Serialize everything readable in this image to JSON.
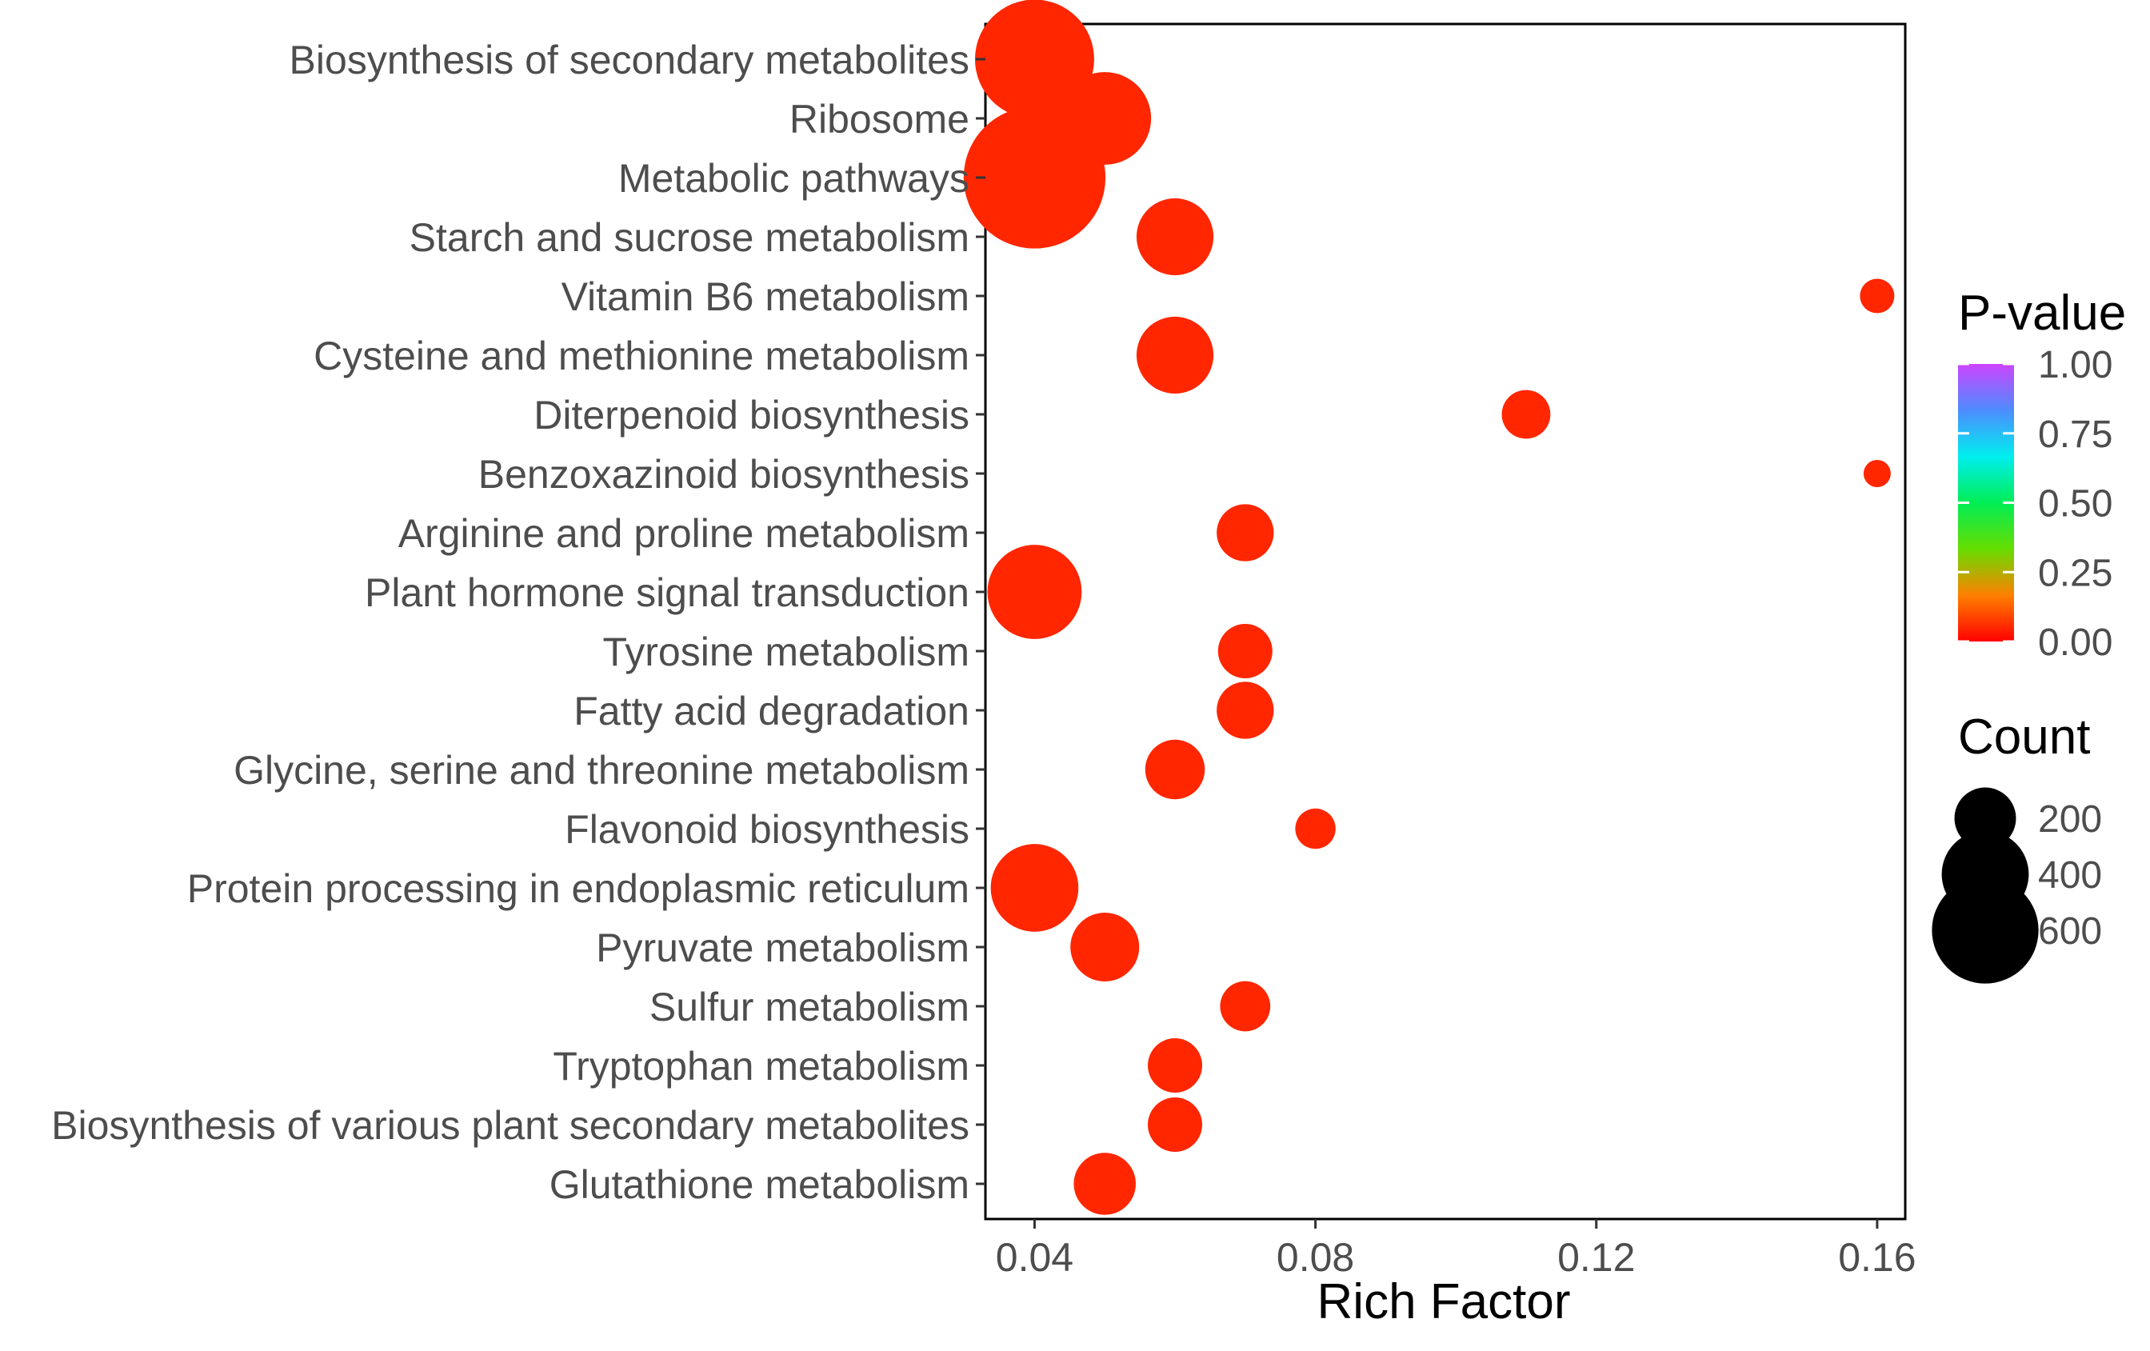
{
  "chart_data": {
    "type": "scatter",
    "subtype": "bubble",
    "xlabel": "Rich Factor",
    "ylabel": "",
    "xlim": [
      0.033,
      0.164
    ],
    "x_ticks": [
      0.04,
      0.08,
      0.12,
      0.16
    ],
    "x_tick_labels": [
      "0.04",
      "0.08",
      "0.12",
      "0.16"
    ],
    "grid": false,
    "categories": [
      "Biosynthesis of secondary metabolites",
      "Ribosome",
      "Metabolic pathways",
      "Starch and sucrose metabolism",
      "Vitamin B6 metabolism",
      "Cysteine and methionine metabolism",
      "Diterpenoid biosynthesis",
      "Benzoxazinoid biosynthesis",
      "Arginine and proline metabolism",
      "Plant hormone signal transduction",
      "Tyrosine metabolism",
      "Fatty acid degradation",
      "Glycine, serine and threonine metabolism",
      "Flavonoid biosynthesis",
      "Protein processing in endoplasmic reticulum",
      "Pyruvate metabolism",
      "Sulfur metabolism",
      "Tryptophan metabolism",
      "Biosynthesis of various plant secondary metabolites",
      "Glutathione metabolism"
    ],
    "rich_factor": [
      0.04,
      0.05,
      0.04,
      0.06,
      0.16,
      0.06,
      0.11,
      0.16,
      0.07,
      0.04,
      0.07,
      0.07,
      0.06,
      0.08,
      0.04,
      0.05,
      0.07,
      0.06,
      0.06,
      0.05
    ],
    "count": [
      480,
      290,
      680,
      200,
      40,
      200,
      80,
      25,
      110,
      300,
      100,
      110,
      120,
      55,
      260,
      160,
      85,
      100,
      100,
      130
    ],
    "p_value": [
      0.0,
      0.0,
      0.0,
      0.0,
      0.0,
      0.0,
      0.0,
      0.0,
      0.0,
      0.0,
      0.0,
      0.0,
      0.0,
      0.0,
      0.0,
      0.0,
      0.0,
      0.0,
      0.0,
      0.0
    ],
    "point_color": "#FF2600",
    "legend": {
      "color": {
        "title": "P-value",
        "ticks": [
          1.0,
          0.75,
          0.5,
          0.25,
          0.0
        ],
        "tick_labels": [
          "1.00",
          "0.75",
          "0.50",
          "0.25",
          "0.00"
        ],
        "gradient": [
          "#FF0000",
          "#FF8000",
          "#66DD00",
          "#00EE55",
          "#00EEEE",
          "#4D8CFF",
          "#CC44FF"
        ]
      },
      "size": {
        "title": "Count",
        "values": [
          200,
          400,
          600
        ],
        "labels": [
          "200",
          "400",
          "600"
        ],
        "marker_color": "#000000"
      },
      "position": "right"
    }
  }
}
